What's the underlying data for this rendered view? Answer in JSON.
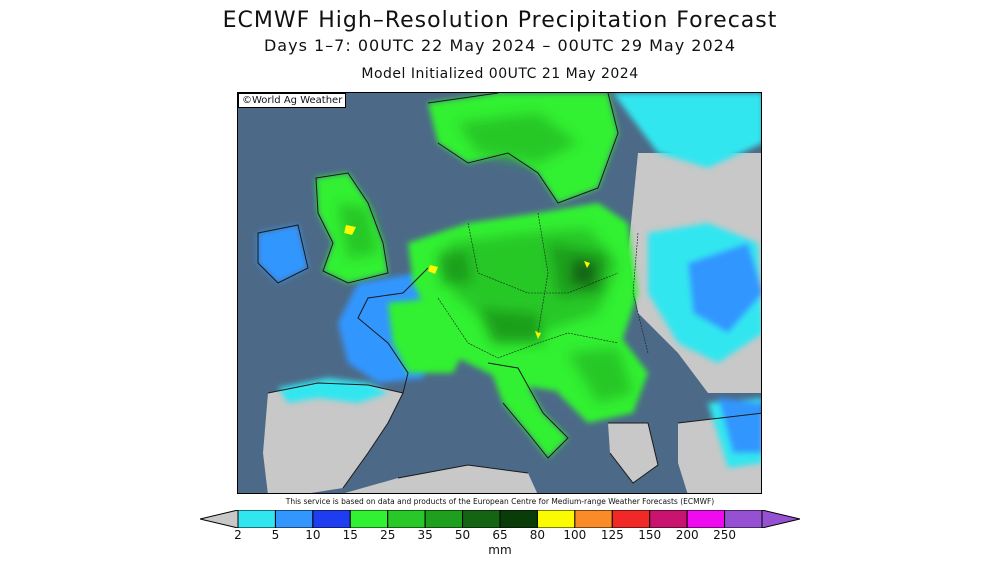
{
  "title": "ECMWF High–Resolution Precipitation Forecast",
  "subtitle": "Days 1–7: 00UTC 22 May 2024 – 00UTC 29 May 2024",
  "initialized": "Model Initialized 00UTC 21 May 2024",
  "copyright": "©World Ag Weather",
  "disclaimer": "This service is based on data and products of the European Centre for Medium-range Weather Forecasts (ECMWF)",
  "legend": {
    "unit": "mm",
    "levels": [
      "2",
      "5",
      "10",
      "15",
      "25",
      "35",
      "50",
      "65",
      "80",
      "100",
      "125",
      "150",
      "200",
      "250"
    ],
    "colors": [
      "#c8c8c8",
      "#32e6f0",
      "#3296ff",
      "#1e3cf0",
      "#32f032",
      "#28c828",
      "#1ea01e",
      "#146414",
      "#0a3c0a",
      "#fafa00",
      "#fa8c28",
      "#f02828",
      "#c8146e",
      "#f00af0",
      "#9650d2"
    ]
  },
  "map": {
    "ocean_color": "#4c6a88",
    "land_dry_color": "#c8c8c8"
  }
}
